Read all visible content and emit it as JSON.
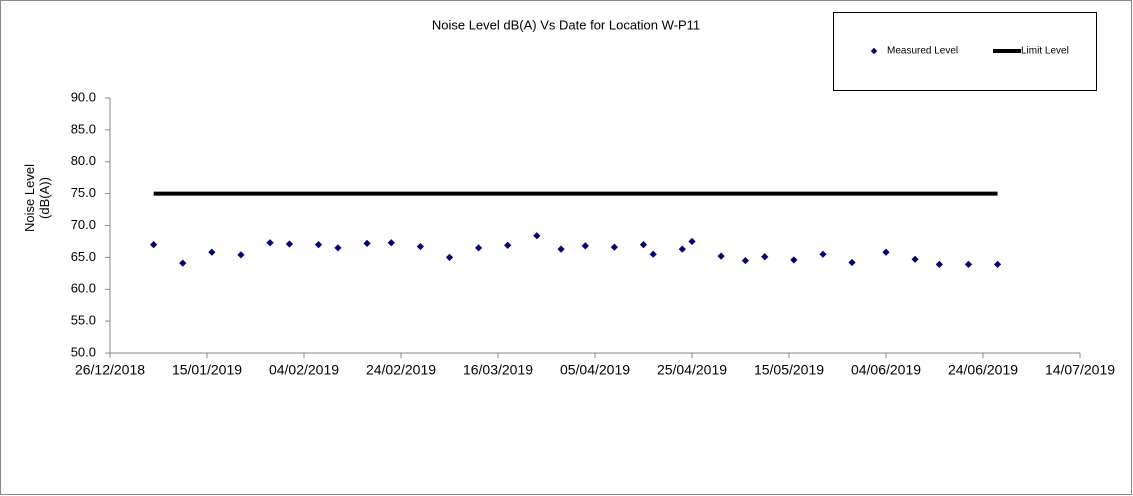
{
  "chart_data": {
    "type": "scatter",
    "title": "Noise Level dB(A) Vs Date for Location W-P11",
    "y_label": "Noise Level (dB(A))",
    "ylim": [
      50,
      90
    ],
    "yticks": [
      {
        "value": 50,
        "label": "50.0"
      },
      {
        "value": 55,
        "label": "55.0"
      },
      {
        "value": 60,
        "label": "60.0"
      },
      {
        "value": 65,
        "label": "65.0"
      },
      {
        "value": 70,
        "label": "70.0"
      },
      {
        "value": 75,
        "label": "75.0"
      },
      {
        "value": 80,
        "label": "80.0"
      },
      {
        "value": 85,
        "label": "85.0"
      },
      {
        "value": 90,
        "label": "90.0"
      }
    ],
    "xlim": [
      "2018-12-26",
      "2019-07-14"
    ],
    "xticks": [
      {
        "value": "2018-12-26",
        "label": "26/12/2018"
      },
      {
        "value": "2019-01-15",
        "label": "15/01/2019"
      },
      {
        "value": "2019-02-04",
        "label": "04/02/2019"
      },
      {
        "value": "2019-02-24",
        "label": "24/02/2019"
      },
      {
        "value": "2019-03-16",
        "label": "16/03/2019"
      },
      {
        "value": "2019-04-05",
        "label": "05/04/2019"
      },
      {
        "value": "2019-04-25",
        "label": "25/04/2019"
      },
      {
        "value": "2019-05-15",
        "label": "15/05/2019"
      },
      {
        "value": "2019-06-04",
        "label": "04/06/2019"
      },
      {
        "value": "2019-06-24",
        "label": "24/06/2019"
      },
      {
        "value": "2019-07-14",
        "label": "14/07/2019"
      }
    ],
    "legend": "top-right",
    "series": [
      {
        "name": "Measured Level",
        "type": "scatter",
        "color": "#000080",
        "x": [
          "2019-01-04",
          "2019-01-10",
          "2019-01-16",
          "2019-01-22",
          "2019-01-28",
          "2019-02-01",
          "2019-02-07",
          "2019-02-11",
          "2019-02-17",
          "2019-02-22",
          "2019-02-28",
          "2019-03-06",
          "2019-03-12",
          "2019-03-18",
          "2019-03-24",
          "2019-03-29",
          "2019-04-03",
          "2019-04-09",
          "2019-04-15",
          "2019-04-17",
          "2019-04-23",
          "2019-04-25",
          "2019-05-01",
          "2019-05-06",
          "2019-05-10",
          "2019-05-16",
          "2019-05-22",
          "2019-05-28",
          "2019-06-04",
          "2019-06-10",
          "2019-06-15",
          "2019-06-21",
          "2019-06-27"
        ],
        "values": [
          67.0,
          64.1,
          65.8,
          65.4,
          67.3,
          67.1,
          67.0,
          66.5,
          67.2,
          67.3,
          66.7,
          65.0,
          66.5,
          66.9,
          68.4,
          66.3,
          66.8,
          66.6,
          67.0,
          65.5,
          66.3,
          67.5,
          65.2,
          64.5,
          65.1,
          64.6,
          65.5,
          64.2,
          65.8,
          64.7,
          63.9,
          63.9,
          63.9
        ]
      },
      {
        "name": "Limit Level",
        "type": "line",
        "color": "#000000",
        "x": [
          "2019-01-04",
          "2019-06-27"
        ],
        "values": [
          75,
          75
        ]
      }
    ]
  }
}
